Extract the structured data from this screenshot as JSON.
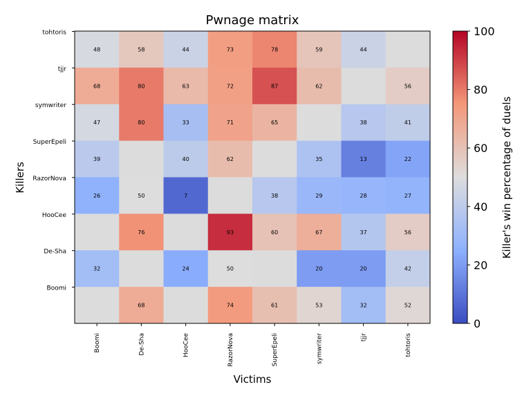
{
  "chart_data": {
    "type": "heatmap",
    "title": "Pwnage matrix",
    "xlabel": "Victims",
    "ylabel": "Killers",
    "x_categories": [
      "Boomi",
      "De-Sha",
      "HooCee",
      "RazorNova",
      "SuperEpeli",
      "symwriter",
      "tjjr",
      "tohtoris"
    ],
    "y_categories": [
      "tohtoris",
      "tjjr",
      "symwriter",
      "SuperEpeli",
      "RazorNova",
      "HooCee",
      "De-Sha",
      "Boomi"
    ],
    "values": [
      [
        48,
        58,
        44,
        73,
        78,
        59,
        44,
        null
      ],
      [
        68,
        80,
        63,
        72,
        87,
        62,
        null,
        56
      ],
      [
        47,
        80,
        33,
        71,
        65,
        null,
        38,
        41
      ],
      [
        39,
        null,
        40,
        62,
        null,
        35,
        13,
        22
      ],
      [
        26,
        50,
        7,
        null,
        38,
        29,
        28,
        27
      ],
      [
        null,
        76,
        null,
        93,
        60,
        67,
        37,
        56
      ],
      [
        32,
        null,
        24,
        50,
        null,
        20,
        20,
        42
      ],
      [
        null,
        68,
        null,
        74,
        61,
        53,
        32,
        52
      ]
    ],
    "empty_cell_color": "#dcdcdc",
    "colormap": "coolwarm",
    "vmin": 0,
    "vmax": 100,
    "colorbar": {
      "label": "Killer's win percentage of duels",
      "ticks": [
        "0",
        "20",
        "40",
        "60",
        "80",
        "100"
      ]
    }
  }
}
